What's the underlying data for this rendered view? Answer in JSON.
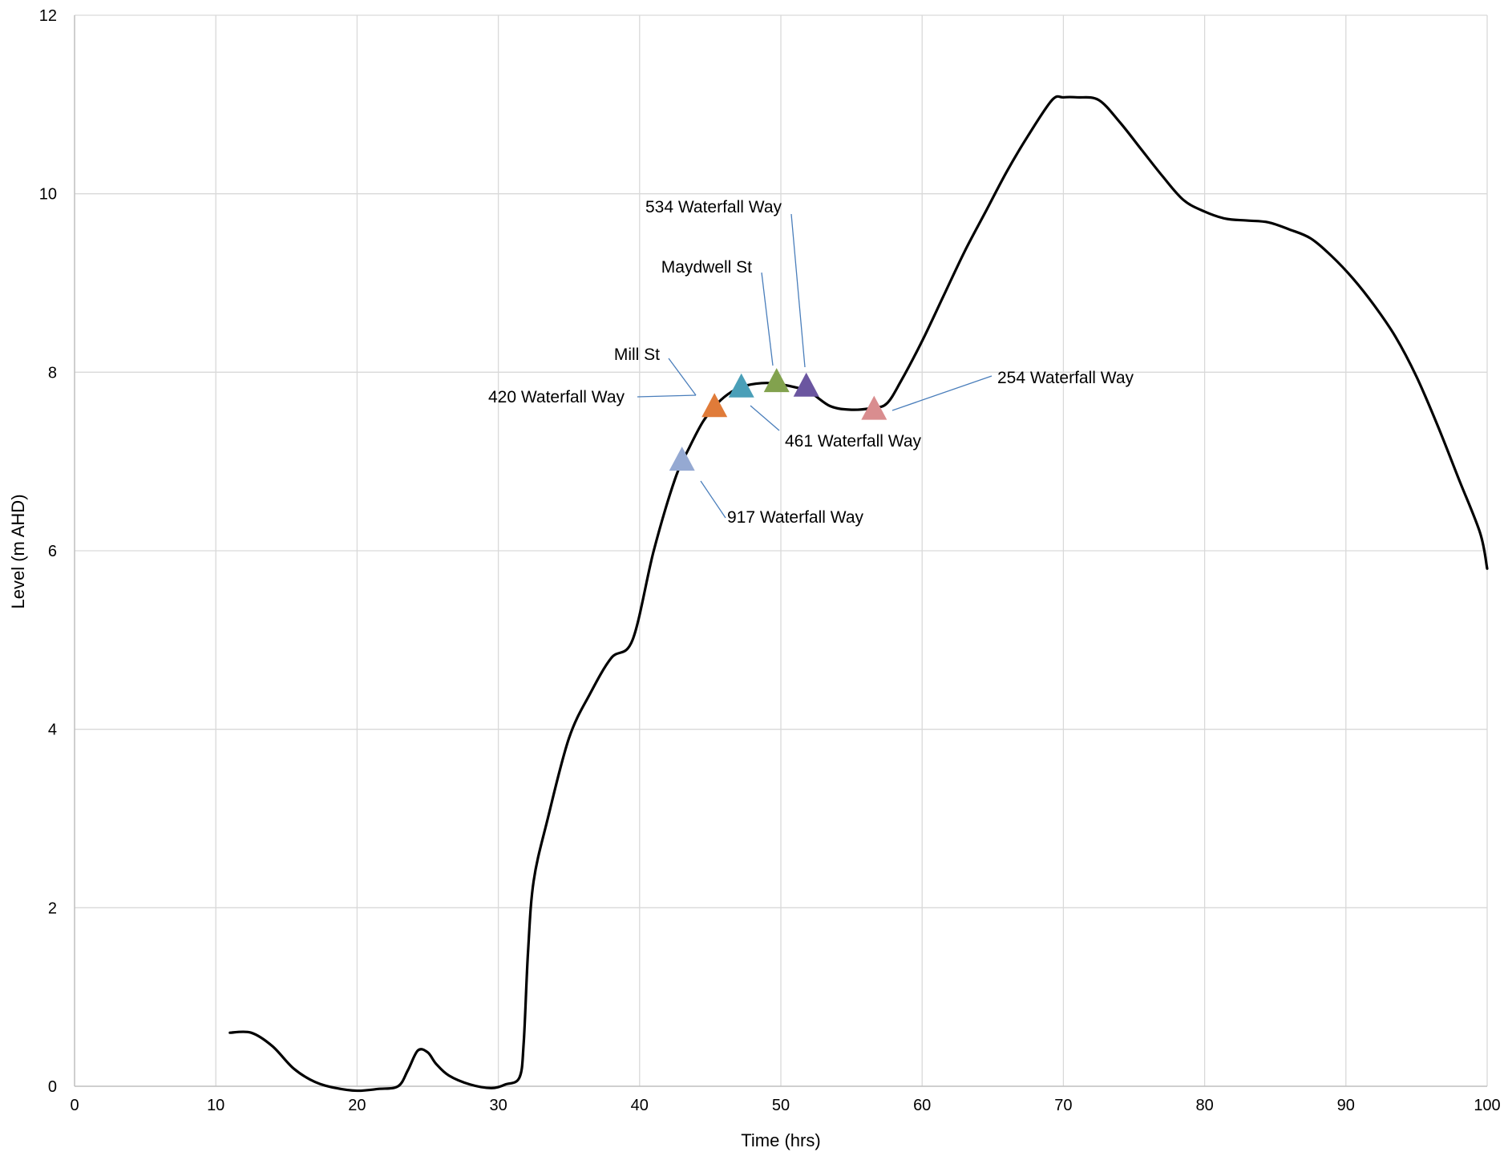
{
  "chart_data": {
    "type": "line",
    "title": "",
    "xlabel": "Time (hrs)",
    "ylabel": "Level (m AHD)",
    "xlim": [
      0,
      100
    ],
    "ylim": [
      0,
      12
    ],
    "xticks": [
      0,
      10,
      20,
      30,
      40,
      50,
      60,
      70,
      80,
      90,
      100
    ],
    "yticks": [
      0,
      2,
      4,
      6,
      8,
      10,
      12
    ],
    "grid": true,
    "legend": "none",
    "series": [
      {
        "color": "#000000",
        "x": [
          11,
          12.5,
          14,
          15.5,
          17,
          18.5,
          20,
          21.5,
          22.9,
          23.6,
          24.3,
          25,
          25.6,
          26.5,
          28,
          29.5,
          30.5,
          31.5,
          31.8,
          32.1,
          32.5,
          33.5,
          35,
          36.5,
          38,
          39.5,
          41,
          42.5,
          43.5,
          44.5,
          45.5,
          46.5,
          47.5,
          49,
          50.5,
          52,
          53.5,
          55,
          56.5,
          57.5,
          58.5,
          60,
          61.5,
          63,
          64.5,
          66,
          67.5,
          69.2,
          70,
          71,
          72.5,
          74,
          75.5,
          77,
          78.5,
          80,
          81.5,
          83,
          84.5,
          86,
          87.5,
          89,
          90.5,
          92,
          93.5,
          95,
          96.5,
          98,
          99.5,
          100
        ],
        "y": [
          0.6,
          0.6,
          0.45,
          0.2,
          0.05,
          -0.02,
          -0.05,
          -0.03,
          0,
          0.18,
          0.4,
          0.38,
          0.25,
          0.12,
          0.02,
          -0.02,
          0.02,
          0.1,
          0.5,
          1.5,
          2.3,
          3.0,
          3.9,
          4.4,
          4.8,
          5.0,
          6.0,
          6.8,
          7.15,
          7.45,
          7.65,
          7.78,
          7.85,
          7.88,
          7.85,
          7.78,
          7.62,
          7.58,
          7.6,
          7.65,
          7.9,
          8.35,
          8.85,
          9.35,
          9.8,
          10.25,
          10.65,
          11.05,
          11.08,
          11.08,
          11.05,
          10.8,
          10.5,
          10.2,
          9.93,
          9.8,
          9.72,
          9.7,
          9.68,
          9.6,
          9.5,
          9.3,
          9.05,
          8.75,
          8.4,
          7.95,
          7.4,
          6.8,
          6.2,
          5.8
        ]
      }
    ],
    "markers": [
      {
        "label": "917 Waterfall Way",
        "x": 43,
        "y": 7.0,
        "color": "#95a9d2"
      },
      {
        "label": "420 Waterfall Way",
        "x": 45.3,
        "y": 7.6,
        "color": "#e07b39"
      },
      {
        "label": "Mill St",
        "x": 47.2,
        "y": 7.82,
        "color": "#4a9fb8"
      },
      {
        "label": "461 Waterfall Way",
        "x": 47.2,
        "y": 7.82,
        "color": "#4a9fb8"
      },
      {
        "label": "Maydwell St",
        "x": 49.7,
        "y": 7.88,
        "color": "#82a24e"
      },
      {
        "label": "534 Waterfall Way",
        "x": 51.8,
        "y": 7.83,
        "color": "#6b56a0"
      },
      {
        "label": "254 Waterfall Way",
        "x": 56.6,
        "y": 7.57,
        "color": "#d98d8f"
      }
    ]
  }
}
